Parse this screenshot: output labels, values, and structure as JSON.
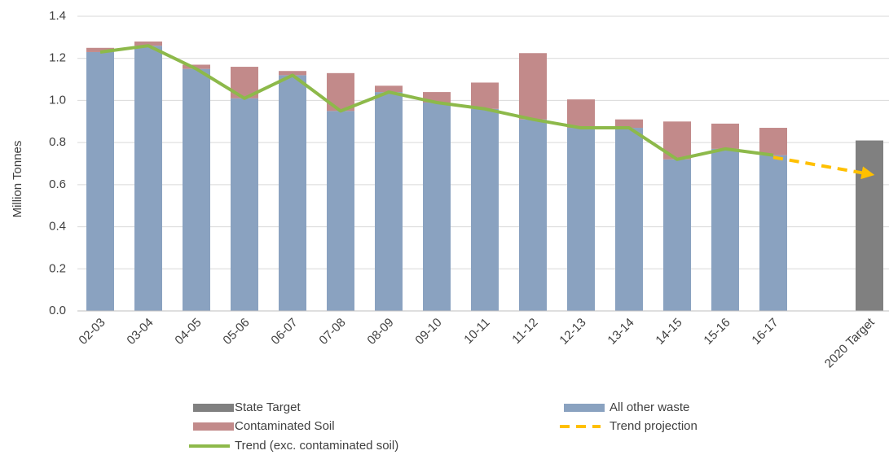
{
  "chart_data": {
    "type": "bar",
    "ylabel": "Million Tonnes",
    "categories": [
      "02-03",
      "03-04",
      "04-05",
      "05-06",
      "06-07",
      "07-08",
      "08-09",
      "09-10",
      "10-11",
      "11-12",
      "12-13",
      "13-14",
      "14-15",
      "15-16",
      "16-17",
      null,
      "2020 Target"
    ],
    "series": [
      {
        "name": "State Target",
        "type": "bar",
        "color": "#808080",
        "values": [
          null,
          null,
          null,
          null,
          null,
          null,
          null,
          null,
          null,
          null,
          null,
          null,
          null,
          null,
          null,
          null,
          0.81
        ]
      },
      {
        "name": "All other waste",
        "type": "bar",
        "color": "#8aa2c0",
        "values": [
          1.23,
          1.26,
          1.15,
          1.01,
          1.12,
          0.95,
          1.04,
          0.99,
          0.96,
          0.91,
          0.87,
          0.87,
          0.72,
          0.77,
          0.74,
          null,
          null
        ]
      },
      {
        "name": "Contaminated Soil",
        "type": "bar",
        "color": "#c28a8a",
        "values": [
          0.02,
          0.02,
          0.02,
          0.15,
          0.02,
          0.18,
          0.03,
          0.05,
          0.125,
          0.315,
          0.135,
          0.04,
          0.18,
          0.12,
          0.13,
          null,
          null
        ]
      },
      {
        "name": "Trend projection",
        "type": "line",
        "color": "#ffc000",
        "dashed": true,
        "arrow": true,
        "values": [
          null,
          null,
          null,
          null,
          null,
          null,
          null,
          null,
          null,
          null,
          null,
          null,
          null,
          null,
          0.73,
          0.69,
          0.65
        ]
      },
      {
        "name": "Trend (exc. contaminated soil)",
        "type": "line",
        "color": "#8db94a",
        "values": [
          1.23,
          1.26,
          1.15,
          1.01,
          1.12,
          0.95,
          1.04,
          0.99,
          0.96,
          0.91,
          0.87,
          0.87,
          0.72,
          0.77,
          0.74,
          null,
          null
        ]
      }
    ],
    "ylim": [
      0,
      1.4
    ],
    "yticks": [
      {
        "value": 0,
        "label": "0.0"
      },
      0.2,
      0.4,
      0.6,
      0.8,
      {
        "value": 1,
        "label": "1.0"
      },
      1.2,
      1.4
    ],
    "grid": true,
    "legend": "bottom"
  }
}
